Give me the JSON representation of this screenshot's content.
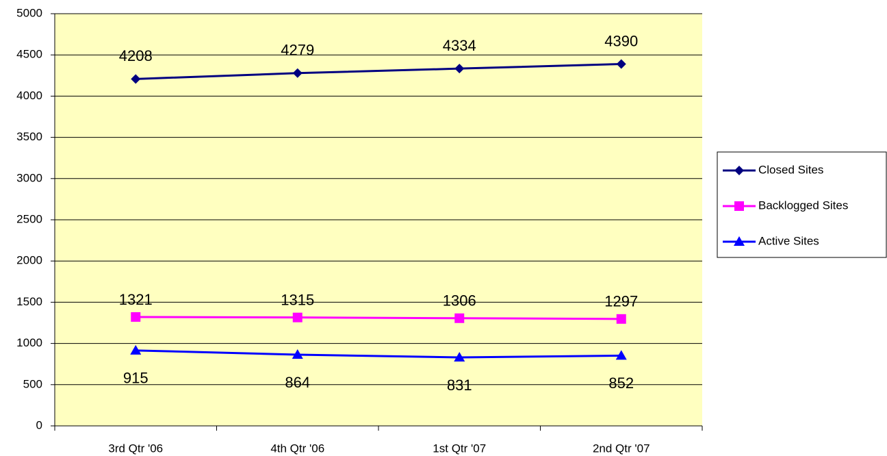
{
  "chart_data": {
    "type": "line",
    "categories": [
      "3rd Qtr '06",
      "4th Qtr '06",
      "1st Qtr '07",
      "2nd Qtr '07"
    ],
    "series": [
      {
        "name": "Closed Sites",
        "color": "#000080",
        "marker": "diamond",
        "values": [
          4208,
          4279,
          4334,
          4390
        ]
      },
      {
        "name": "Backlogged Sites",
        "color": "#ff00ff",
        "marker": "square",
        "values": [
          1321,
          1315,
          1306,
          1297
        ]
      },
      {
        "name": "Active Sites",
        "color": "#0000ff",
        "marker": "triangle",
        "values": [
          915,
          864,
          831,
          852
        ]
      }
    ],
    "ylim": [
      0,
      5000
    ],
    "yticks": [
      0,
      500,
      1000,
      1500,
      2000,
      2500,
      3000,
      3500,
      4000,
      4500,
      5000
    ],
    "grid": true,
    "legend": "right",
    "plot_background": "#ffffc0"
  }
}
